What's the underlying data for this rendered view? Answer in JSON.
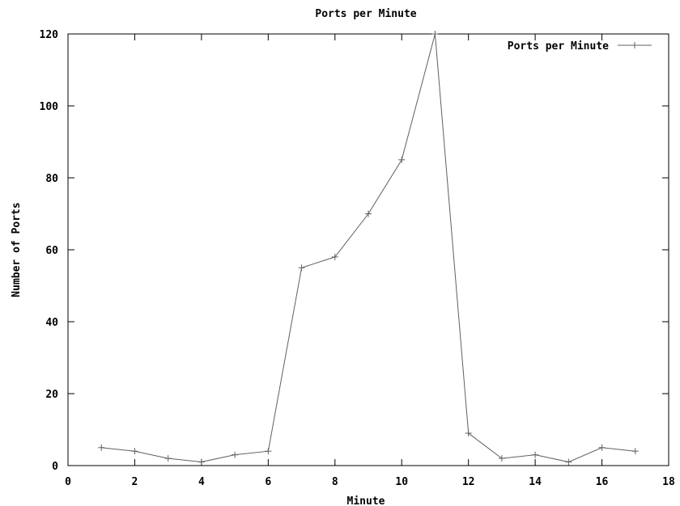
{
  "chart_data": {
    "type": "line",
    "title": "Ports per Minute",
    "xlabel": "Minute",
    "ylabel": "Number of Ports",
    "xlim": [
      0,
      18
    ],
    "ylim": [
      0,
      120
    ],
    "xticks": [
      0,
      2,
      4,
      6,
      8,
      10,
      12,
      14,
      16,
      18
    ],
    "yticks": [
      0,
      20,
      40,
      60,
      80,
      100,
      120
    ],
    "grid": false,
    "legend_position": "top-right",
    "series": [
      {
        "name": "Ports per Minute",
        "color": "#606060",
        "marker": "plus",
        "x": [
          1,
          2,
          3,
          4,
          5,
          6,
          7,
          8,
          9,
          10,
          11,
          12,
          13,
          14,
          15,
          16,
          17
        ],
        "y": [
          5,
          4,
          2,
          1,
          3,
          4,
          55,
          58,
          70,
          85,
          120,
          9,
          2,
          3,
          1,
          5,
          4
        ]
      }
    ]
  }
}
